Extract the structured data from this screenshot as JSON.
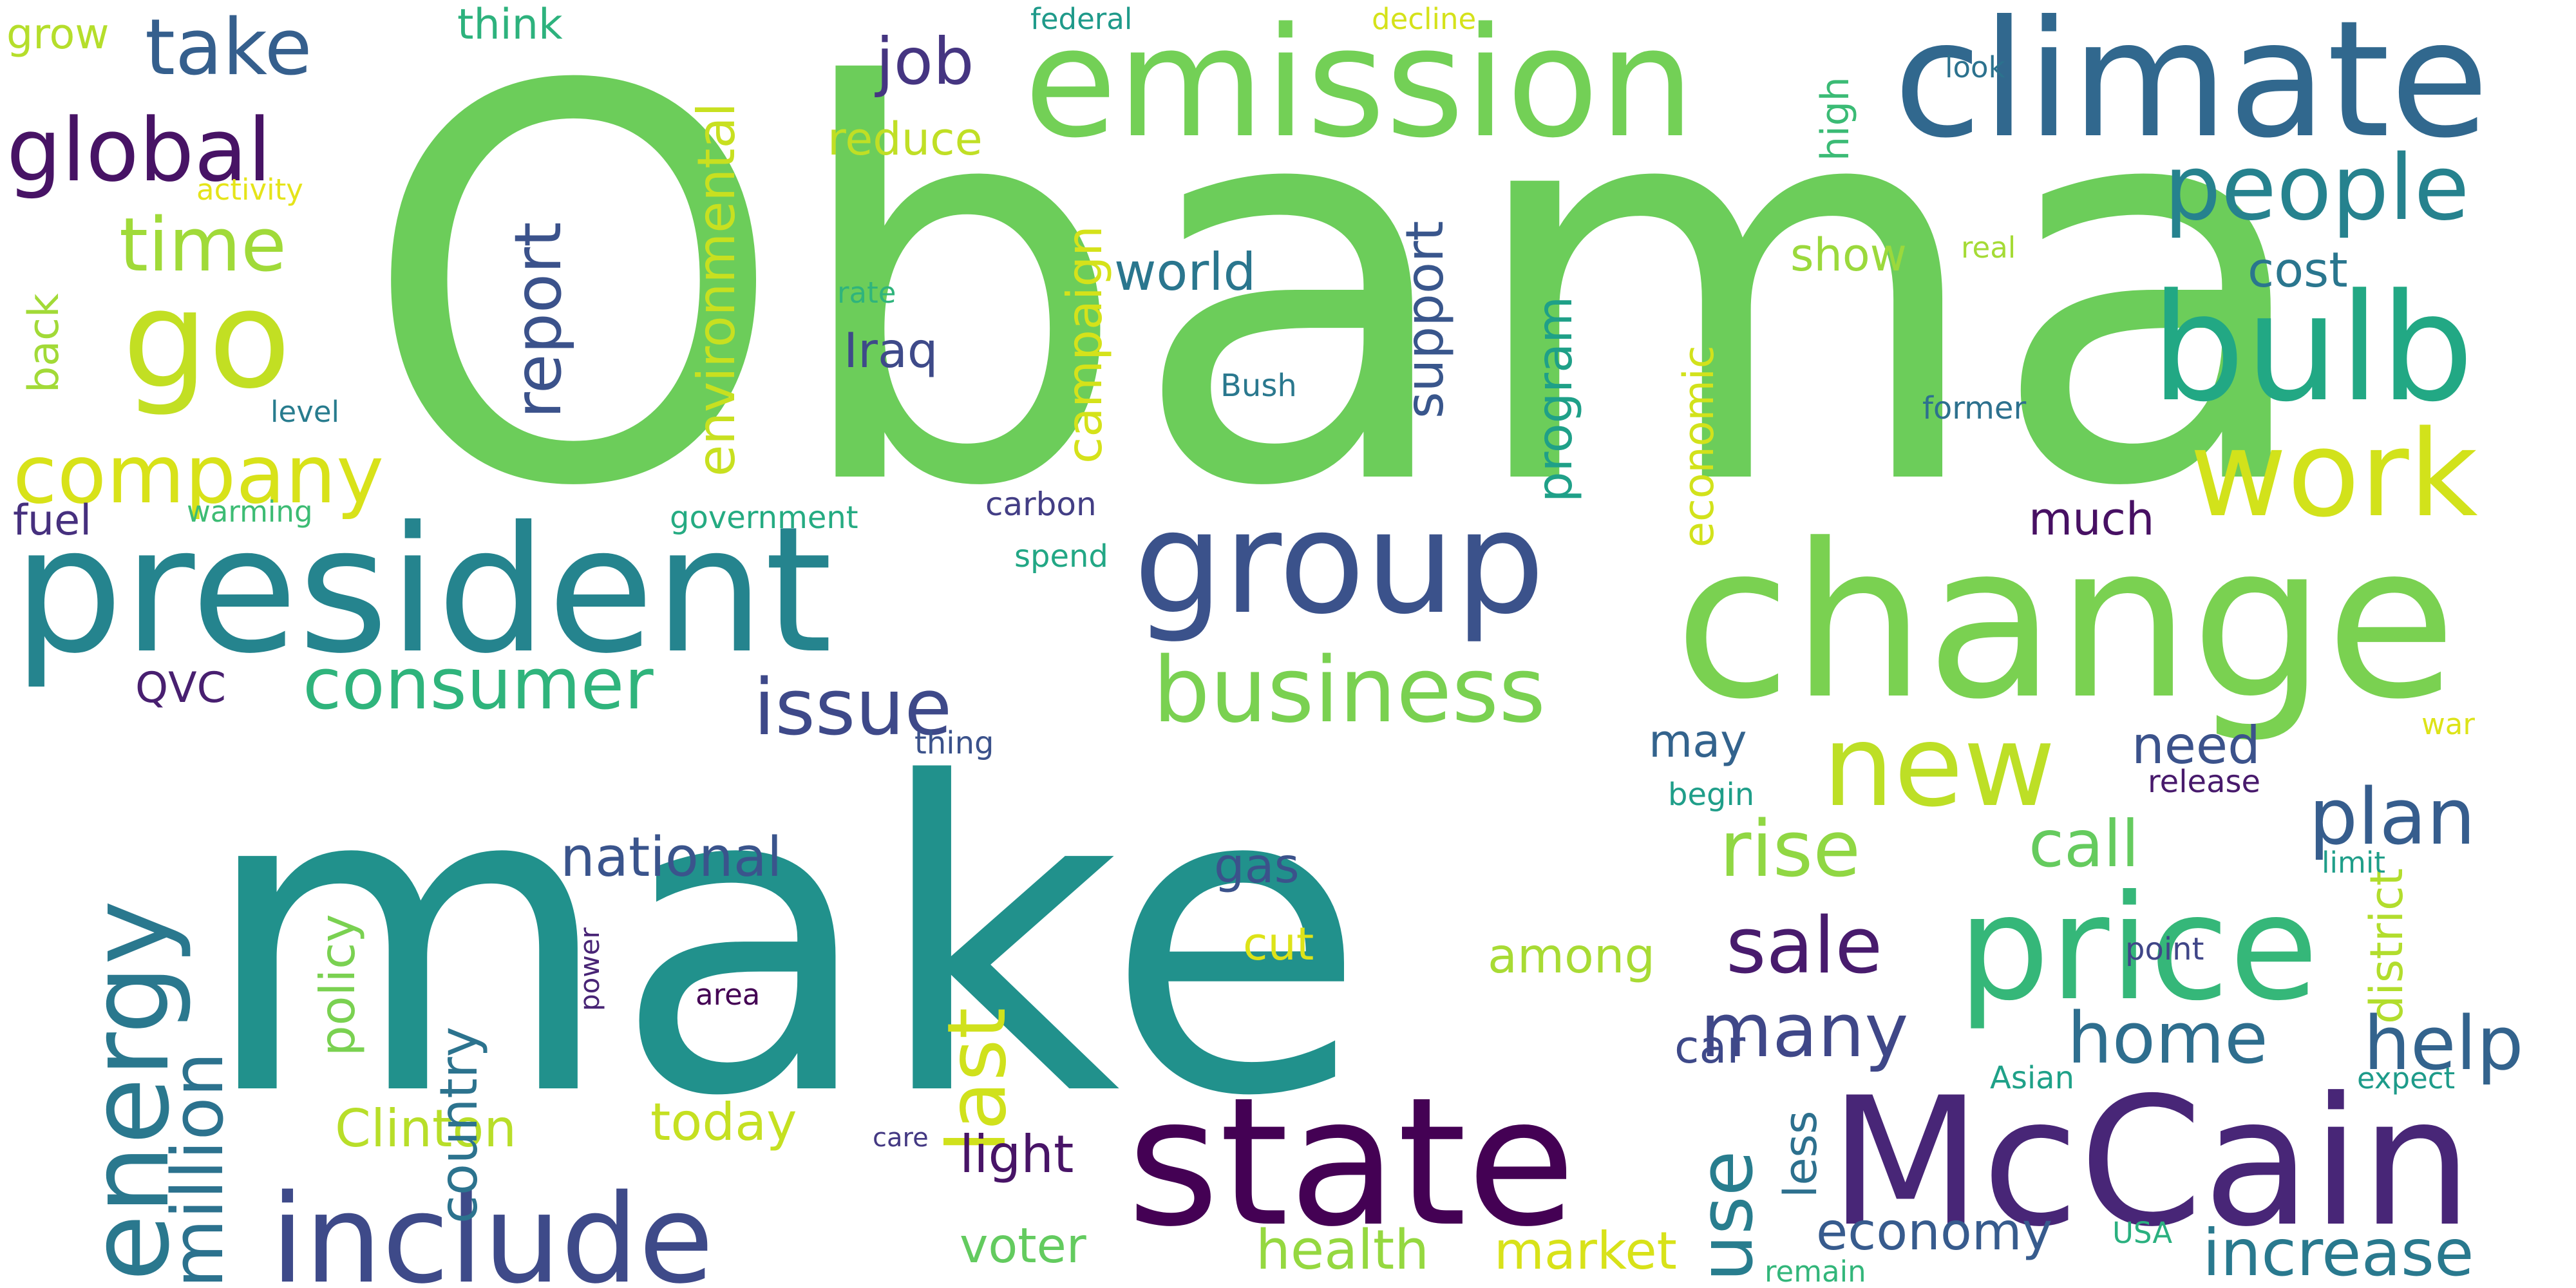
{
  "words": [
    {
      "text": "Obama",
      "color": "#6ccd5a"
    },
    {
      "text": "make",
      "color": "#21918c"
    },
    {
      "text": "change",
      "color": "#7ad151"
    },
    {
      "text": "president",
      "color": "#25848e"
    },
    {
      "text": "state",
      "color": "#440154"
    },
    {
      "text": "McCain",
      "color": "#482677"
    },
    {
      "text": "climate",
      "color": "#31688e"
    },
    {
      "text": "emission",
      "color": "#73d056"
    },
    {
      "text": "group",
      "color": "#3b528b"
    },
    {
      "text": "bulb",
      "color": "#22a884"
    },
    {
      "text": "price",
      "color": "#35b779"
    },
    {
      "text": "go",
      "color": "#c2df23"
    },
    {
      "text": "work",
      "color": "#d2e21b"
    },
    {
      "text": "new",
      "color": "#bddf26"
    },
    {
      "text": "include",
      "color": "#3e4a89"
    },
    {
      "text": "energy",
      "color": "#2a788e"
    },
    {
      "text": "business",
      "color": "#7ad151"
    },
    {
      "text": "company",
      "color": "#d8e219"
    },
    {
      "text": "global",
      "color": "#471365"
    },
    {
      "text": "people",
      "color": "#26828e"
    },
    {
      "text": "take",
      "color": "#355f8d"
    },
    {
      "text": "consumer",
      "color": "#2fb47c"
    },
    {
      "text": "million",
      "color": "#2c728e"
    },
    {
      "text": "last",
      "color": "#d0e11c"
    },
    {
      "text": "issue",
      "color": "#3e4989"
    },
    {
      "text": "plan",
      "color": "#365d8d"
    },
    {
      "text": "sale",
      "color": "#481b6d"
    },
    {
      "text": "rise",
      "color": "#90d743"
    },
    {
      "text": "time",
      "color": "#a0da39"
    },
    {
      "text": "many",
      "color": "#3f4788"
    },
    {
      "text": "help",
      "color": "#33638d"
    },
    {
      "text": "home",
      "color": "#2e6e8e"
    },
    {
      "text": "report",
      "color": "#3b528b"
    },
    {
      "text": "use",
      "color": "#287d8e"
    },
    {
      "text": "call",
      "color": "#65cb5e"
    },
    {
      "text": "increase",
      "color": "#29798e"
    },
    {
      "text": "national",
      "color": "#3a548c"
    },
    {
      "text": "job",
      "color": "#453581"
    },
    {
      "text": "environmental",
      "color": "#c8e020"
    },
    {
      "text": "campaign",
      "color": "#d5e21a"
    },
    {
      "text": "economy",
      "color": "#375b8d"
    },
    {
      "text": "health",
      "color": "#95d840"
    },
    {
      "text": "Clinton",
      "color": "#b8de29"
    },
    {
      "text": "market",
      "color": "#d8e219"
    },
    {
      "text": "support",
      "color": "#39568c"
    },
    {
      "text": "program",
      "color": "#1fa088"
    },
    {
      "text": "country",
      "color": "#2c738e"
    },
    {
      "text": "world",
      "color": "#2a768e"
    },
    {
      "text": "today",
      "color": "#c5e021"
    },
    {
      "text": "policy",
      "color": "#7ad151"
    },
    {
      "text": "need",
      "color": "#3b528b"
    },
    {
      "text": "light",
      "color": "#481467"
    },
    {
      "text": "less",
      "color": "#2d708e"
    },
    {
      "text": "district",
      "color": "#b2dd2d"
    },
    {
      "text": "among",
      "color": "#a8db34"
    },
    {
      "text": "voter",
      "color": "#63cb5f"
    },
    {
      "text": "gas",
      "color": "#3b528b"
    },
    {
      "text": "car",
      "color": "#3e4989"
    },
    {
      "text": "economic",
      "color": "#d2e21b"
    },
    {
      "text": "may",
      "color": "#33638d"
    },
    {
      "text": "show",
      "color": "#9bd93c"
    },
    {
      "text": "cost",
      "color": "#2a768e"
    },
    {
      "text": "reduce",
      "color": "#c0df25"
    },
    {
      "text": "much",
      "color": "#471063"
    },
    {
      "text": "think",
      "color": "#2db27d"
    },
    {
      "text": "high",
      "color": "#3bbb75"
    },
    {
      "text": "Iraq",
      "color": "#3e4a89"
    },
    {
      "text": "back",
      "color": "#a2da37"
    },
    {
      "text": "fuel",
      "color": "#46307e"
    },
    {
      "text": "grow",
      "color": "#b5de2b"
    },
    {
      "text": "cut",
      "color": "#dde318"
    },
    {
      "text": "QVC",
      "color": "#481f70"
    },
    {
      "text": "warming",
      "color": "#3dbc74"
    },
    {
      "text": "government",
      "color": "#25ab82"
    },
    {
      "text": "carbon",
      "color": "#433e85"
    },
    {
      "text": "spend",
      "color": "#22a785"
    },
    {
      "text": "level",
      "color": "#287c8e"
    },
    {
      "text": "rate",
      "color": "#2fb47c"
    },
    {
      "text": "federal",
      "color": "#1f9a8a"
    },
    {
      "text": "decline",
      "color": "#d5e21a"
    },
    {
      "text": "activity",
      "color": "#e5e419"
    },
    {
      "text": "look",
      "color": "#2c728e"
    },
    {
      "text": "real",
      "color": "#a5db36"
    },
    {
      "text": "Bush",
      "color": "#2a788e"
    },
    {
      "text": "former",
      "color": "#2d718e"
    },
    {
      "text": "thing",
      "color": "#3b528b"
    },
    {
      "text": "begin",
      "color": "#1f9e89"
    },
    {
      "text": "release",
      "color": "#481a6c"
    },
    {
      "text": "war",
      "color": "#dde318"
    },
    {
      "text": "limit",
      "color": "#1f9e89"
    },
    {
      "text": "point",
      "color": "#404688"
    },
    {
      "text": "Asian",
      "color": "#1fa188"
    },
    {
      "text": "expect",
      "color": "#1e9b8a"
    },
    {
      "text": "care",
      "color": "#443983"
    },
    {
      "text": "USA",
      "color": "#2ab07f"
    },
    {
      "text": "remain",
      "color": "#32b67a"
    },
    {
      "text": "power",
      "color": "#482475"
    },
    {
      "text": "area",
      "color": "#440154"
    }
  ]
}
